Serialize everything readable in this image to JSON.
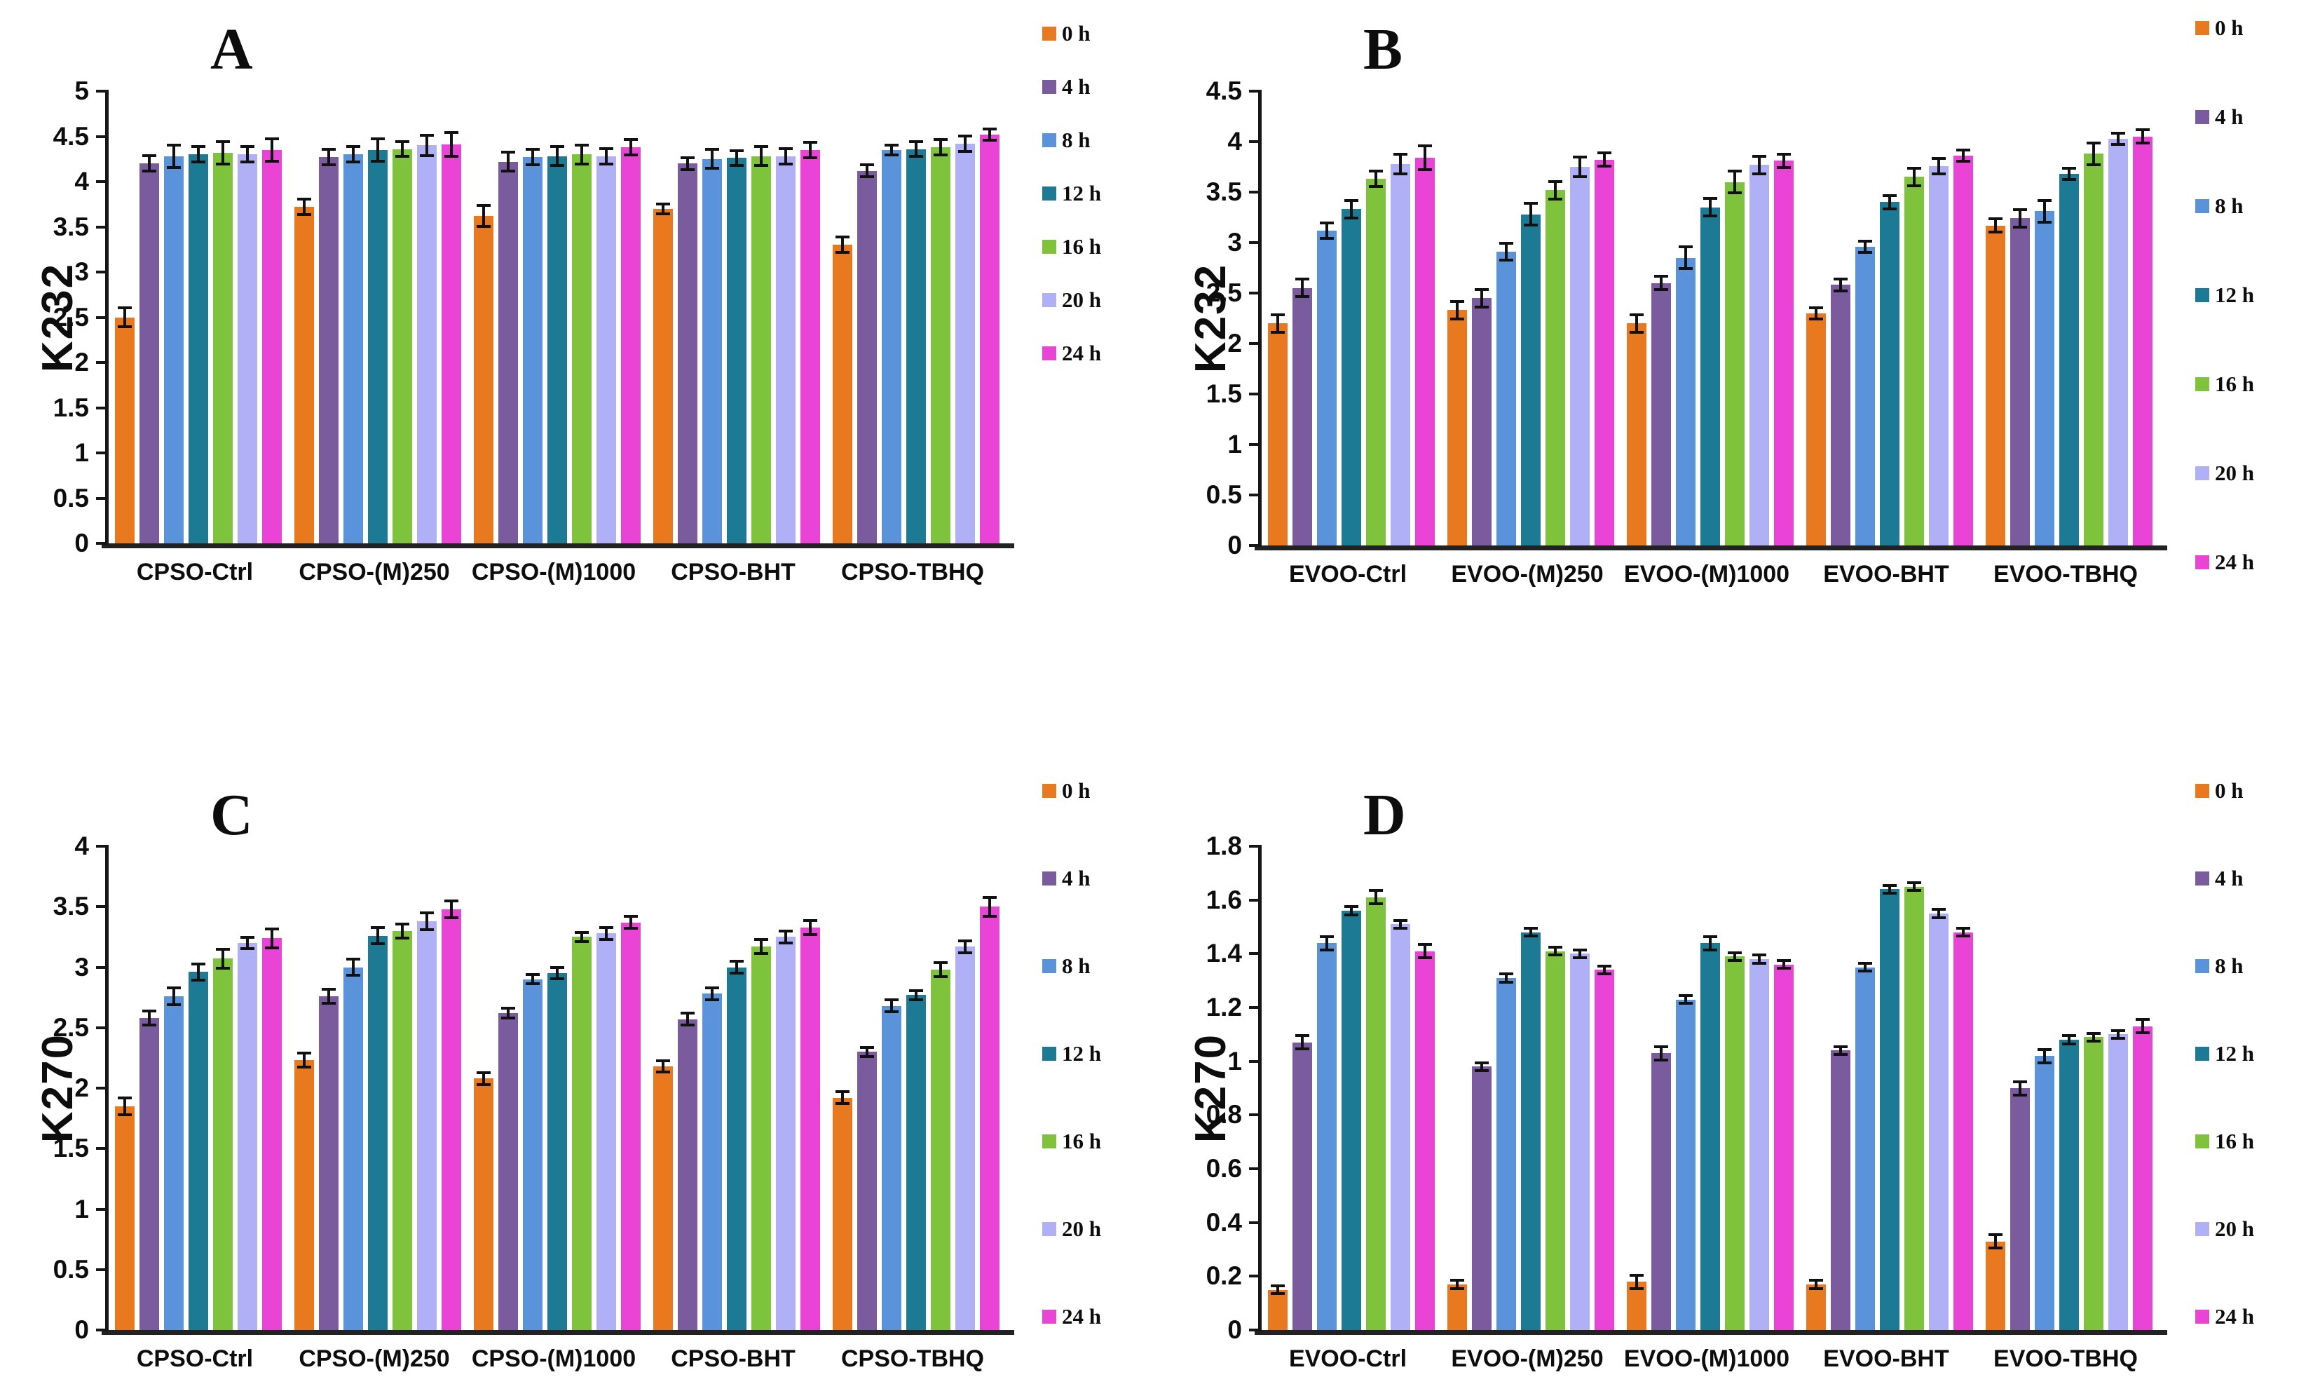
{
  "legend_labels": [
    "0 h",
    "4 h",
    "8 h",
    "12 h",
    "16 h",
    "20 h",
    "24 h"
  ],
  "series_colors": {
    "0 h": "#E8791F",
    "4 h": "#7A5C9E",
    "8 h": "#5B93DB",
    "12 h": "#1D7A94",
    "16 h": "#7FC33C",
    "20 h": "#AFB0F5",
    "24 h": "#E944D6"
  },
  "chart_data": [
    {
      "id": "A",
      "type": "bar",
      "title": "",
      "xlabel": "",
      "ylabel": "K232",
      "ylim": [
        0,
        5
      ],
      "ytick_step": 0.5,
      "grid": false,
      "legend_position": "right",
      "error_bars": true,
      "categories": [
        "CPSO-Ctrl",
        "CPSO-(M)250",
        "CPSO-(M)1000",
        "CPSO-BHT",
        "CPSO-TBHQ"
      ],
      "series": [
        {
          "name": "0 h",
          "color": "#E8791F",
          "values": [
            2.5,
            3.72,
            3.62,
            3.7,
            3.3
          ],
          "errors": [
            0.12,
            0.1,
            0.13,
            0.07,
            0.1
          ]
        },
        {
          "name": "4 h",
          "color": "#7A5C9E",
          "values": [
            4.2,
            4.27,
            4.22,
            4.2,
            4.12
          ],
          "errors": [
            0.1,
            0.1,
            0.12,
            0.08,
            0.08
          ]
        },
        {
          "name": "8 h",
          "color": "#5B93DB",
          "values": [
            4.28,
            4.3,
            4.27,
            4.25,
            4.35
          ],
          "errors": [
            0.14,
            0.1,
            0.1,
            0.12,
            0.07
          ]
        },
        {
          "name": "12 h",
          "color": "#1D7A94",
          "values": [
            4.3,
            4.35,
            4.28,
            4.26,
            4.36
          ],
          "errors": [
            0.1,
            0.14,
            0.12,
            0.1,
            0.1
          ]
        },
        {
          "name": "16 h",
          "color": "#7FC33C",
          "values": [
            4.32,
            4.36,
            4.3,
            4.28,
            4.38
          ],
          "errors": [
            0.14,
            0.1,
            0.12,
            0.12,
            0.1
          ]
        },
        {
          "name": "20 h",
          "color": "#AFB0F5",
          "values": [
            4.3,
            4.4,
            4.28,
            4.28,
            4.42
          ],
          "errors": [
            0.1,
            0.13,
            0.1,
            0.1,
            0.1
          ]
        },
        {
          "name": "24 h",
          "color": "#E944D6",
          "values": [
            4.35,
            4.41,
            4.38,
            4.35,
            4.52
          ],
          "errors": [
            0.14,
            0.15,
            0.1,
            0.1,
            0.08
          ]
        }
      ]
    },
    {
      "id": "B",
      "type": "bar",
      "title": "",
      "xlabel": "",
      "ylabel": "K232",
      "ylim": [
        0,
        4.5
      ],
      "ytick_step": 0.5,
      "grid": false,
      "legend_position": "right",
      "error_bars": true,
      "categories": [
        "EVOO-Ctrl",
        "EVOO-(M)250",
        "EVOO-(M)1000",
        "EVOO-BHT",
        "EVOO-TBHQ"
      ],
      "series": [
        {
          "name": "0 h",
          "color": "#E8791F",
          "values": [
            2.2,
            2.33,
            2.2,
            2.3,
            3.17
          ],
          "errors": [
            0.1,
            0.1,
            0.1,
            0.07,
            0.08
          ]
        },
        {
          "name": "4 h",
          "color": "#7A5C9E",
          "values": [
            2.55,
            2.45,
            2.6,
            2.58,
            3.24
          ],
          "errors": [
            0.1,
            0.1,
            0.08,
            0.07,
            0.1
          ]
        },
        {
          "name": "8 h",
          "color": "#5B93DB",
          "values": [
            3.12,
            2.91,
            2.85,
            2.96,
            3.31
          ],
          "errors": [
            0.09,
            0.1,
            0.12,
            0.07,
            0.12
          ]
        },
        {
          "name": "12 h",
          "color": "#1D7A94",
          "values": [
            3.33,
            3.28,
            3.35,
            3.4,
            3.68
          ],
          "errors": [
            0.1,
            0.12,
            0.1,
            0.08,
            0.07
          ]
        },
        {
          "name": "16 h",
          "color": "#7FC33C",
          "values": [
            3.63,
            3.52,
            3.6,
            3.65,
            3.88
          ],
          "errors": [
            0.09,
            0.1,
            0.12,
            0.1,
            0.12
          ]
        },
        {
          "name": "20 h",
          "color": "#AFB0F5",
          "values": [
            3.78,
            3.75,
            3.77,
            3.76,
            4.03
          ],
          "errors": [
            0.11,
            0.11,
            0.1,
            0.09,
            0.07
          ]
        },
        {
          "name": "24 h",
          "color": "#E944D6",
          "values": [
            3.84,
            3.82,
            3.81,
            3.86,
            4.05
          ],
          "errors": [
            0.13,
            0.08,
            0.08,
            0.07,
            0.08
          ]
        }
      ]
    },
    {
      "id": "C",
      "type": "bar",
      "title": "",
      "xlabel": "",
      "ylabel": "K270",
      "ylim": [
        0,
        4
      ],
      "ytick_step": 0.5,
      "grid": false,
      "legend_position": "right",
      "error_bars": true,
      "categories": [
        "CPSO-Ctrl",
        "CPSO-(M)250",
        "CPSO-(M)1000",
        "CPSO-BHT",
        "CPSO-TBHQ"
      ],
      "series": [
        {
          "name": "0 h",
          "color": "#E8791F",
          "values": [
            1.85,
            2.23,
            2.08,
            2.18,
            1.92
          ],
          "errors": [
            0.08,
            0.07,
            0.06,
            0.06,
            0.06
          ]
        },
        {
          "name": "4 h",
          "color": "#7A5C9E",
          "values": [
            2.58,
            2.76,
            2.62,
            2.57,
            2.3
          ],
          "errors": [
            0.07,
            0.07,
            0.05,
            0.06,
            0.05
          ]
        },
        {
          "name": "8 h",
          "color": "#5B93DB",
          "values": [
            2.76,
            3.0,
            2.9,
            2.78,
            2.68
          ],
          "errors": [
            0.08,
            0.08,
            0.05,
            0.06,
            0.06
          ]
        },
        {
          "name": "12 h",
          "color": "#1D7A94",
          "values": [
            2.96,
            3.26,
            2.95,
            3.0,
            2.77
          ],
          "errors": [
            0.08,
            0.08,
            0.06,
            0.06,
            0.05
          ]
        },
        {
          "name": "16 h",
          "color": "#7FC33C",
          "values": [
            3.07,
            3.3,
            3.25,
            3.17,
            2.98
          ],
          "errors": [
            0.09,
            0.07,
            0.05,
            0.07,
            0.07
          ]
        },
        {
          "name": "20 h",
          "color": "#AFB0F5",
          "values": [
            3.2,
            3.38,
            3.28,
            3.25,
            3.17
          ],
          "errors": [
            0.06,
            0.08,
            0.06,
            0.06,
            0.06
          ]
        },
        {
          "name": "24 h",
          "color": "#E944D6",
          "values": [
            3.24,
            3.48,
            3.37,
            3.33,
            3.5
          ],
          "errors": [
            0.09,
            0.08,
            0.06,
            0.07,
            0.09
          ]
        }
      ]
    },
    {
      "id": "D",
      "type": "bar",
      "title": "",
      "xlabel": "",
      "ylabel": "K270",
      "ylim": [
        0,
        1.8
      ],
      "ytick_step": 0.2,
      "grid": false,
      "legend_position": "right",
      "error_bars": true,
      "categories": [
        "EVOO-Ctrl",
        "EVOO-(M)250",
        "EVOO-(M)1000",
        "EVOO-BHT",
        "EVOO-TBHQ"
      ],
      "series": [
        {
          "name": "0 h",
          "color": "#E8791F",
          "values": [
            0.15,
            0.17,
            0.18,
            0.17,
            0.33
          ],
          "errors": [
            0.02,
            0.02,
            0.03,
            0.02,
            0.03
          ]
        },
        {
          "name": "4 h",
          "color": "#7A5C9E",
          "values": [
            1.07,
            0.98,
            1.03,
            1.04,
            0.9
          ],
          "errors": [
            0.03,
            0.02,
            0.03,
            0.02,
            0.03
          ]
        },
        {
          "name": "8 h",
          "color": "#5B93DB",
          "values": [
            1.44,
            1.31,
            1.23,
            1.35,
            1.02
          ],
          "errors": [
            0.03,
            0.02,
            0.02,
            0.02,
            0.03
          ]
        },
        {
          "name": "12 h",
          "color": "#1D7A94",
          "values": [
            1.56,
            1.48,
            1.44,
            1.64,
            1.08
          ],
          "errors": [
            0.02,
            0.02,
            0.03,
            0.02,
            0.02
          ]
        },
        {
          "name": "16 h",
          "color": "#7FC33C",
          "values": [
            1.61,
            1.41,
            1.39,
            1.65,
            1.09
          ],
          "errors": [
            0.03,
            0.02,
            0.02,
            0.02,
            0.02
          ]
        },
        {
          "name": "20 h",
          "color": "#AFB0F5",
          "values": [
            1.51,
            1.4,
            1.38,
            1.55,
            1.1
          ],
          "errors": [
            0.02,
            0.02,
            0.02,
            0.02,
            0.02
          ]
        },
        {
          "name": "24 h",
          "color": "#E944D6",
          "values": [
            1.41,
            1.34,
            1.36,
            1.48,
            1.13
          ],
          "errors": [
            0.03,
            0.02,
            0.02,
            0.02,
            0.03
          ]
        }
      ]
    }
  ]
}
